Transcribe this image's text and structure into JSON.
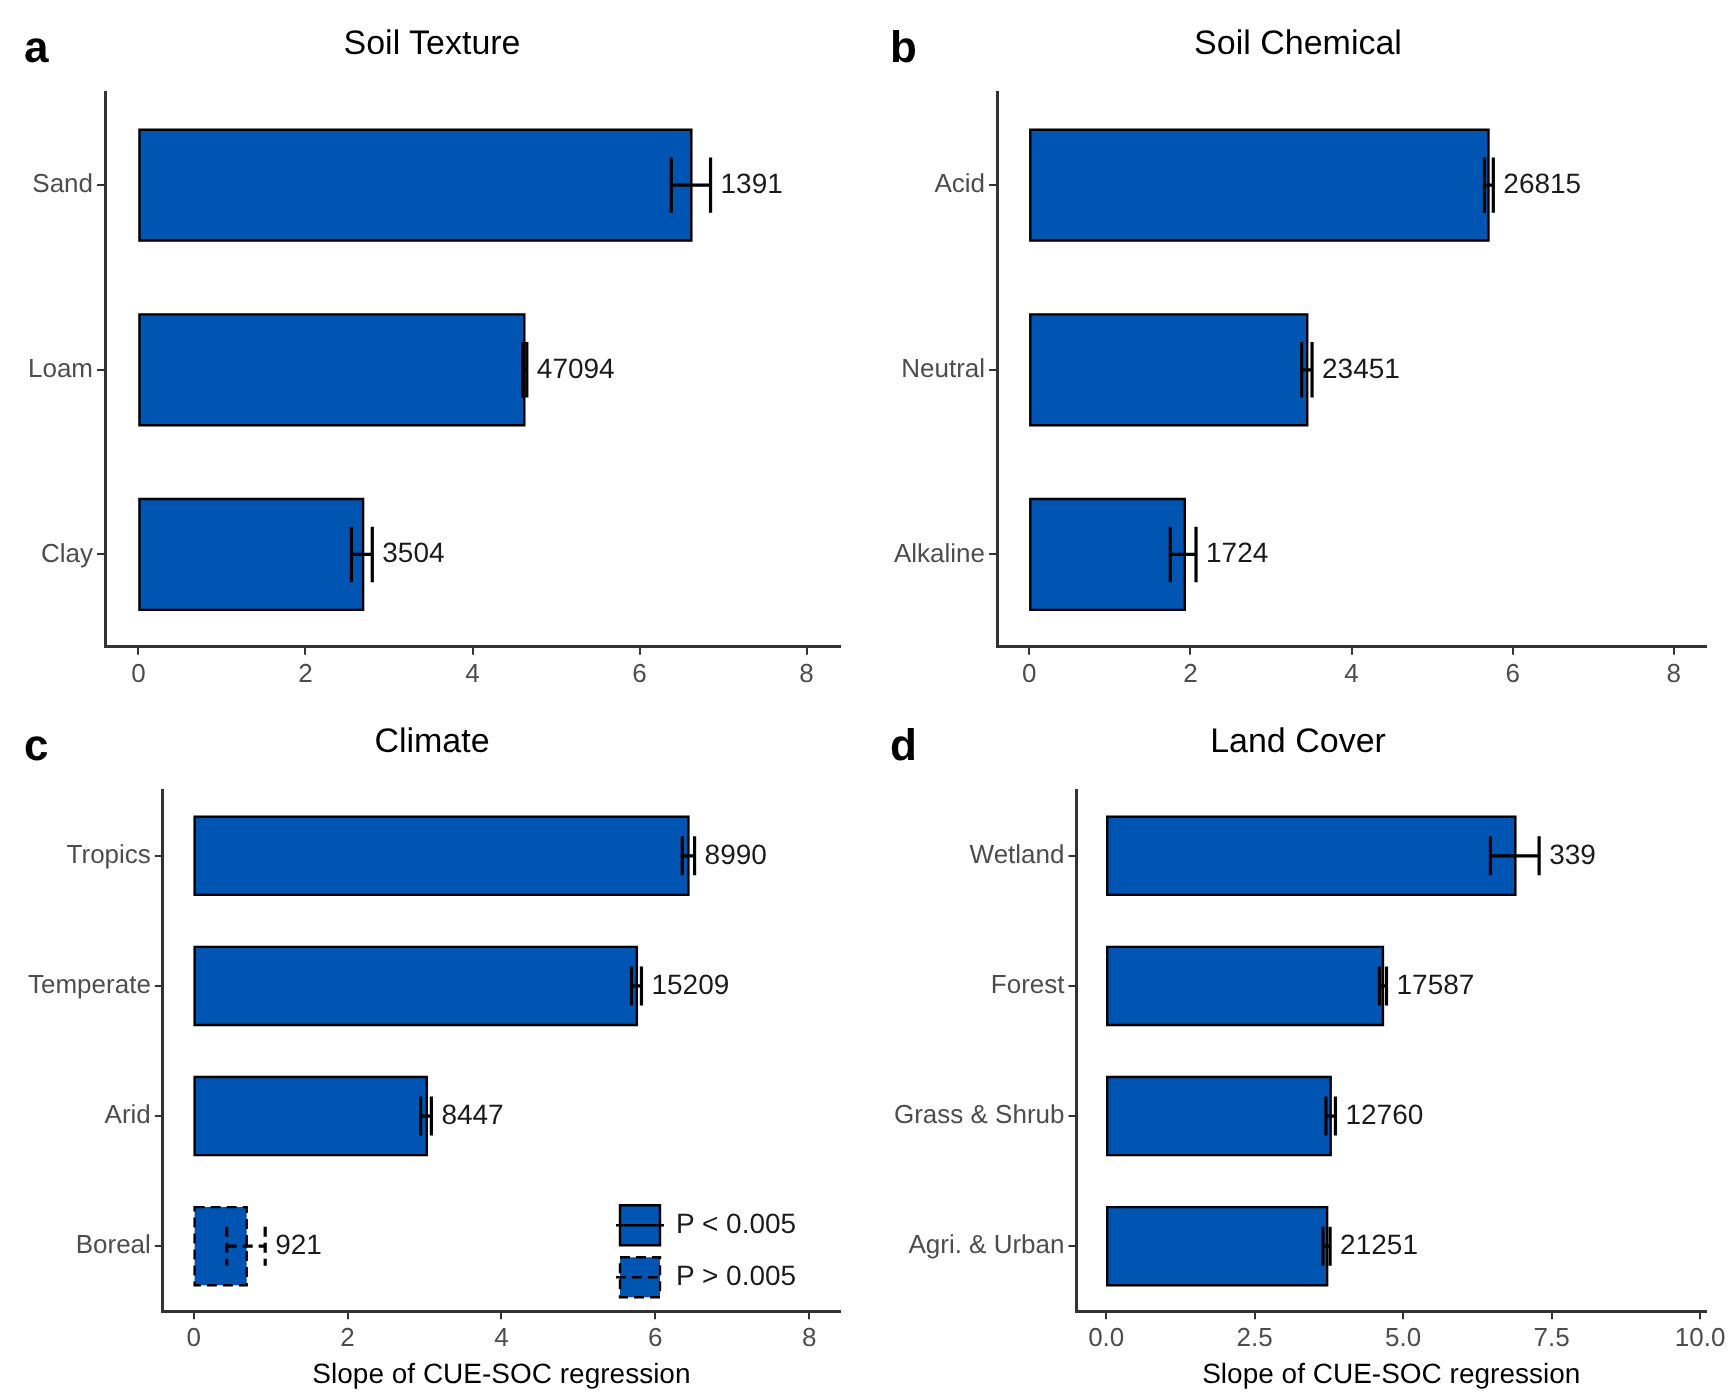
{
  "chart_data": [
    {
      "type": "bar",
      "orientation": "horizontal",
      "title": "Soil Texture",
      "annotations": [
        "a",
        {
          "text": "1391",
          "x": 6.85,
          "y": "Sand"
        },
        {
          "text": "47094",
          "x": 4.65,
          "y": "Loam"
        },
        {
          "text": "3504",
          "x": 2.8,
          "y": "Clay"
        }
      ],
      "categories": [
        "Sand",
        "Loam",
        "Clay"
      ],
      "series": [
        {
          "color": "#0055b3",
          "values": [
            6.62,
            4.62,
            2.69
          ],
          "errors": [
            [
              6.38,
              6.85
            ],
            [
              4.6,
              4.65
            ],
            [
              2.55,
              2.8
            ]
          ]
        }
      ],
      "xlim": [
        -0.4,
        8.4
      ],
      "xticks": [
        0,
        2,
        4,
        6,
        8
      ],
      "grid": false,
      "legend": false
    },
    {
      "type": "bar",
      "orientation": "horizontal",
      "title": "Soil Chemical",
      "annotations": [
        "b",
        {
          "text": "26815",
          "x": 5.76,
          "y": "Acid"
        },
        {
          "text": "23451",
          "x": 3.51,
          "y": "Neutral"
        },
        {
          "text": "1724",
          "x": 2.07,
          "y": "Alkaline"
        }
      ],
      "categories": [
        "Acid",
        "Neutral",
        "Alkaline"
      ],
      "series": [
        {
          "color": "#0055b3",
          "values": [
            5.7,
            3.45,
            1.93
          ],
          "errors": [
            [
              5.65,
              5.76
            ],
            [
              3.38,
              3.51
            ],
            [
              1.75,
              2.07
            ]
          ]
        }
      ],
      "xlim": [
        -0.4,
        8.4
      ],
      "xticks": [
        0,
        2,
        4,
        6,
        8
      ],
      "grid": false,
      "legend": false
    },
    {
      "type": "bar",
      "orientation": "horizontal",
      "title": "Climate",
      "xlabel": "Slope of CUE-SOC regression",
      "annotations": [
        "c",
        {
          "text": "8990",
          "x": 6.51,
          "y": "Tropics"
        },
        {
          "text": "15209",
          "x": 5.82,
          "y": "Temperate"
        },
        {
          "text": "8447",
          "x": 3.09,
          "y": "Arid"
        },
        {
          "text": "921",
          "x": 0.93,
          "y": "Boreal"
        }
      ],
      "categories": [
        "Tropics",
        "Temperate",
        "Arid",
        "Boreal"
      ],
      "series": [
        {
          "name": "P < 0.005",
          "color": "#0055b3",
          "line_style": "solid",
          "values": [
            6.43,
            5.76,
            3.03,
            null
          ],
          "errors": [
            [
              6.35,
              6.51
            ],
            [
              5.69,
              5.82
            ],
            [
              2.95,
              3.09
            ],
            null
          ]
        },
        {
          "name": "P > 0.005",
          "color": "#0055b3",
          "line_style": "dashed",
          "values": [
            null,
            null,
            null,
            0.69
          ],
          "errors": [
            null,
            null,
            null,
            [
              0.43,
              0.93
            ]
          ]
        }
      ],
      "xlim": [
        -0.4,
        8.4
      ],
      "xticks": [
        0,
        2,
        4,
        6,
        8
      ],
      "grid": false,
      "legend": "bottom right"
    },
    {
      "type": "bar",
      "orientation": "horizontal",
      "title": "Land Cover",
      "xlabel": "Slope of CUE-SOC regression",
      "annotations": [
        "d",
        {
          "text": "339",
          "x": 7.29,
          "y": "Wetland"
        },
        {
          "text": "17587",
          "x": 4.72,
          "y": "Forest"
        },
        {
          "text": "12760",
          "x": 3.86,
          "y": "Grass & Shrub"
        },
        {
          "text": "21251",
          "x": 3.77,
          "y": "Agri. & Urban"
        }
      ],
      "categories": [
        "Wetland",
        "Forest",
        "Grass & Shrub",
        "Agri. & Urban"
      ],
      "series": [
        {
          "color": "#0055b3",
          "values": [
            6.89,
            4.66,
            3.78,
            3.72
          ],
          "errors": [
            [
              6.47,
              7.29
            ],
            [
              4.6,
              4.72
            ],
            [
              3.7,
              3.86
            ],
            [
              3.65,
              3.77
            ]
          ]
        }
      ],
      "xlim": [
        -0.5,
        10.1
      ],
      "xticks": [
        {
          "value": 0,
          "label": "0.0"
        },
        2.5,
        {
          "value": 5,
          "label": "5.0"
        },
        7.5,
        {
          "value": 10,
          "label": "10.0"
        }
      ],
      "grid": false,
      "legend": false
    }
  ]
}
